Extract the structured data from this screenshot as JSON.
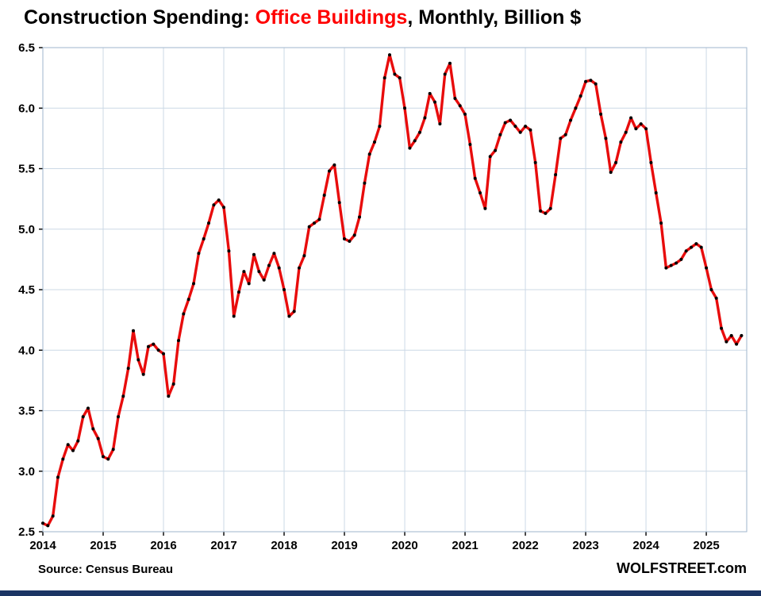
{
  "title": {
    "prefix": "Construction Spending: ",
    "highlight": "Office Buildings",
    "suffix": ", Monthly, Billion $",
    "highlight_color": "#ff0000"
  },
  "footer": {
    "source": "Source: Census Bureau",
    "brand": "WOLFSTREET.com"
  },
  "colors": {
    "line": "#e80c0c",
    "marker": "#000000",
    "grid": "#ccd9e6",
    "frame": "#9fb6ce",
    "tick": "#000000",
    "label": "#000000",
    "footer_bar": "#1b3564"
  },
  "chart_data": {
    "type": "line",
    "title": "Construction Spending: Office Buildings, Monthly, Billion $",
    "xlabel": "",
    "ylabel": "Billion $",
    "ylim": [
      2.5,
      6.5
    ],
    "xlim_years": [
      2014,
      2025.67
    ],
    "grid": true,
    "legend_position": "none",
    "x_tick_labels": [
      "2014",
      "2015",
      "2016",
      "2017",
      "2018",
      "2019",
      "2020",
      "2021",
      "2022",
      "2023",
      "2024",
      "2025"
    ],
    "y_tick_labels": [
      "2.5",
      "3.0",
      "3.5",
      "4.0",
      "4.5",
      "5.0",
      "5.5",
      "6.0",
      "6.5"
    ],
    "series": [
      {
        "name": "Office buildings construction spending, monthly, billion $",
        "start_month": "2014-01",
        "frequency": "monthly",
        "values": [
          2.57,
          2.55,
          2.63,
          2.95,
          3.1,
          3.22,
          3.17,
          3.25,
          3.45,
          3.52,
          3.35,
          3.27,
          3.12,
          3.1,
          3.18,
          3.45,
          3.62,
          3.85,
          4.16,
          3.92,
          3.8,
          4.03,
          4.05,
          4.0,
          3.97,
          3.62,
          3.72,
          4.08,
          4.3,
          4.42,
          4.55,
          4.8,
          4.92,
          5.05,
          5.2,
          5.24,
          5.18,
          4.82,
          4.28,
          4.48,
          4.65,
          4.55,
          4.79,
          4.65,
          4.58,
          4.7,
          4.8,
          4.68,
          4.5,
          4.28,
          4.32,
          4.68,
          4.78,
          5.02,
          5.05,
          5.08,
          5.28,
          5.48,
          5.53,
          5.22,
          4.92,
          4.9,
          4.95,
          5.1,
          5.38,
          5.62,
          5.72,
          5.85,
          6.25,
          6.44,
          6.28,
          6.25,
          6.0,
          5.67,
          5.73,
          5.8,
          5.92,
          6.12,
          6.05,
          5.87,
          6.28,
          6.37,
          6.08,
          6.02,
          5.95,
          5.7,
          5.42,
          5.3,
          5.17,
          5.6,
          5.65,
          5.78,
          5.88,
          5.9,
          5.85,
          5.8,
          5.85,
          5.82,
          5.55,
          5.15,
          5.13,
          5.17,
          5.45,
          5.75,
          5.78,
          5.9,
          6.0,
          6.1,
          6.22,
          6.23,
          6.2,
          5.95,
          5.75,
          5.47,
          5.55,
          5.72,
          5.8,
          5.92,
          5.83,
          5.87,
          5.83,
          5.55,
          5.3,
          5.05,
          4.68,
          4.7,
          4.72,
          4.75,
          4.82,
          4.85,
          4.88,
          4.85,
          4.68,
          4.5,
          4.43,
          4.18,
          4.07,
          4.12,
          4.05,
          4.12
        ]
      }
    ]
  }
}
